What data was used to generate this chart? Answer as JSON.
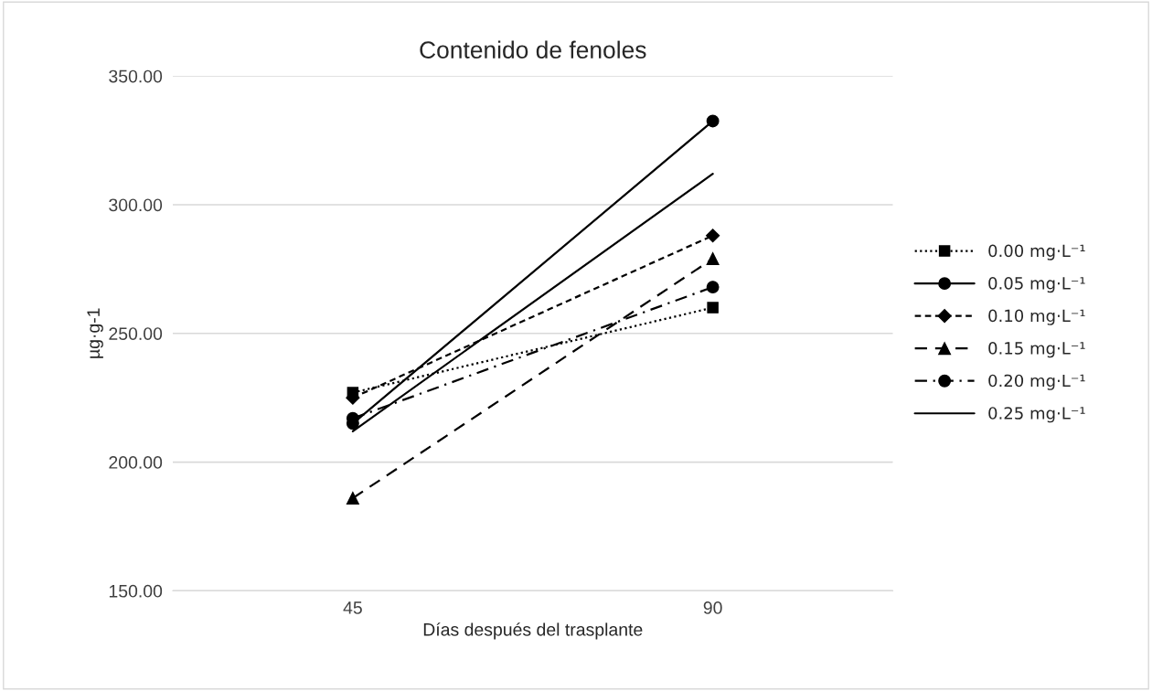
{
  "chart_data": {
    "type": "line",
    "title": "Contenido de fenoles",
    "xlabel": "Días después del trasplante",
    "ylabel": "µg·g-1",
    "categories": [
      "45",
      "90"
    ],
    "series": [
      {
        "name": "0.00 mg·L⁻¹",
        "color": "#000000",
        "marker": "square",
        "line_style": "dotted",
        "values": [
          227,
          260
        ]
      },
      {
        "name": "0.05 mg·L⁻¹",
        "color": "#000000",
        "marker": "circle",
        "line_style": "solid",
        "values": [
          215,
          332.5
        ]
      },
      {
        "name": "0.10 mg·L⁻¹",
        "color": "#000000",
        "marker": "diamond",
        "line_style": "dashed",
        "values": [
          225,
          288
        ]
      },
      {
        "name": "0.15 mg·L⁻¹",
        "color": "#000000",
        "marker": "triangle",
        "line_style": "longdashed",
        "values": [
          186,
          279
        ]
      },
      {
        "name": "0.20 mg·L⁻¹",
        "color": "#000000",
        "marker": "circle",
        "line_style": "dashdot",
        "values": [
          217,
          268
        ]
      },
      {
        "name": "0.25 mg·L⁻¹",
        "color": "#000000",
        "marker": "none",
        "line_style": "solid",
        "values": [
          212,
          312
        ]
      }
    ],
    "ylim": [
      150,
      350
    ],
    "yticks": [
      {
        "value": 150,
        "label": "150.00"
      },
      {
        "value": 200,
        "label": "200.00"
      },
      {
        "value": 250,
        "label": "250.00"
      },
      {
        "value": 300,
        "label": "300.00"
      },
      {
        "value": 350,
        "label": "350.00"
      }
    ],
    "grid": "y",
    "legend": "right"
  }
}
